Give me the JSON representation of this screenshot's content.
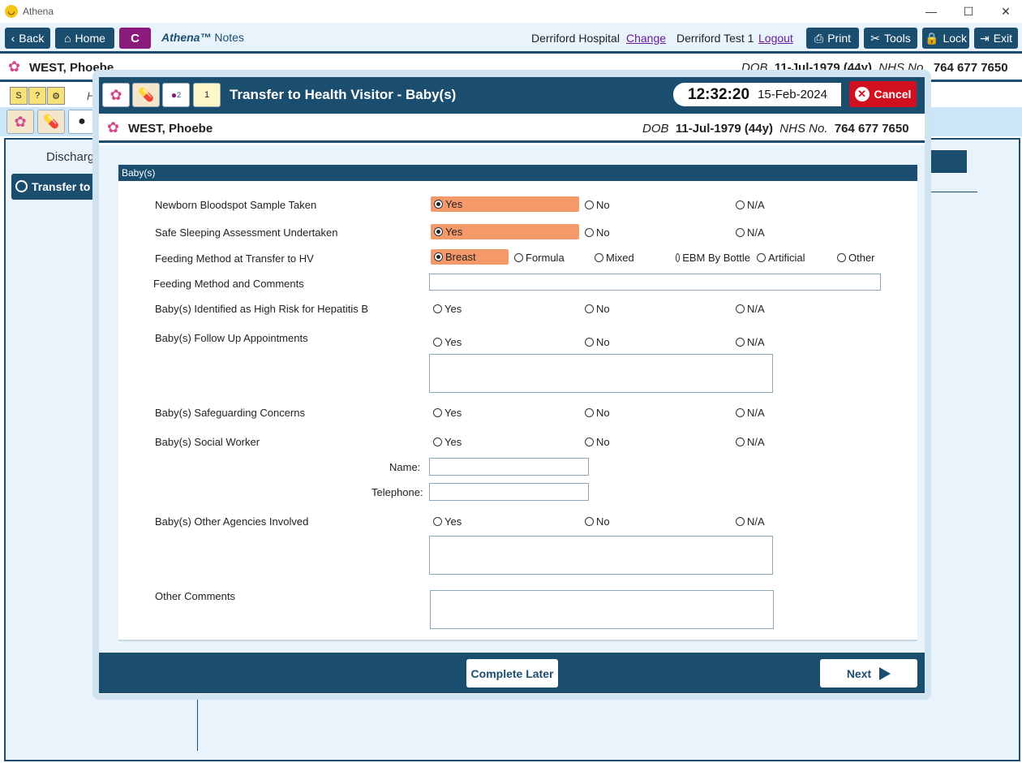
{
  "window": {
    "title": "Athena",
    "minimize": "—",
    "maximize": "☐",
    "close": "✕"
  },
  "toolbar": {
    "back": "Back",
    "home": "Home",
    "c_label": "C",
    "brand": "Athena™",
    "brand_suffix": "Notes",
    "hospital": "Derriford Hospital",
    "change": "Change",
    "user": "Derriford Test 1",
    "logout": "Logout",
    "print": "Print",
    "tools": "Tools",
    "lock": "Lock",
    "exit": "Exit"
  },
  "patient": {
    "name": "WEST, Phoebe",
    "dob_label": "DOB",
    "dob": "11-Jul-1979 (44y)",
    "nhs_label": "NHS No.",
    "nhs": "764 677 7650"
  },
  "background": {
    "discharge_text": "Discharg",
    "transfer_text": "Transfer to",
    "h_text": "H"
  },
  "modal": {
    "title": "Transfer to Health Visitor - Baby(s)",
    "time": "12:32:20",
    "date": "15-Feb-2024",
    "cancel": "Cancel",
    "icon_counter": "2",
    "calendar_num": "1",
    "section": "Baby(s)",
    "labels": {
      "bloodspot": "Newborn Bloodspot Sample Taken",
      "sleeping": "Safe Sleeping Assessment Undertaken",
      "feeding": "Feeding Method at Transfer to HV",
      "feeding_comments": "Feeding Method and Comments",
      "hepb": "Baby(s) Identified as High Risk for Hepatitis B",
      "followup": "Baby(s) Follow Up Appointments",
      "safeguarding": "Baby(s) Safeguarding Concerns",
      "social_worker": "Baby(s) Social Worker",
      "name": "Name:",
      "telephone": "Telephone:",
      "other_agencies": "Baby(s) Other Agencies Involved",
      "other_comments": "Other Comments"
    },
    "yes": "Yes",
    "no": "No",
    "na": "N/A",
    "feeding_options": [
      "Breast",
      "Formula",
      "Mixed",
      "EBM By Bottle",
      "Artificial",
      "Other"
    ],
    "feeding_selected": "Breast",
    "bloodspot_selected": "Yes",
    "sleeping_selected": "Yes",
    "complete_later": "Complete Later",
    "next": "Next"
  }
}
